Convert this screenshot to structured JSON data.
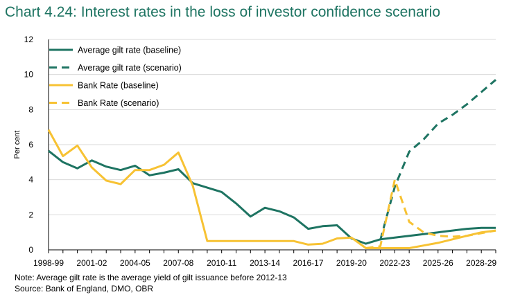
{
  "chart_data": {
    "type": "line",
    "title": "Chart 4.24: Interest rates in the loss of investor confidence scenario",
    "ylabel": "Per cent",
    "xlabel": "",
    "ylim": [
      0,
      12
    ],
    "yticks": [
      0,
      2,
      4,
      6,
      8,
      10,
      12
    ],
    "grid": true,
    "legend_position": "top-left",
    "x_categories": [
      "1998-99",
      "1999-00",
      "2000-01",
      "2001-02",
      "2002-03",
      "2003-04",
      "2004-05",
      "2005-06",
      "2006-07",
      "2007-08",
      "2008-09",
      "2009-10",
      "2010-11",
      "2011-12",
      "2012-13",
      "2013-14",
      "2014-15",
      "2015-16",
      "2016-17",
      "2017-18",
      "2018-19",
      "2019-20",
      "2020-21",
      "2021-22",
      "2022-23",
      "2023-24",
      "2024-25",
      "2025-26",
      "2026-27",
      "2027-28",
      "2028-29",
      "2029-30"
    ],
    "x_tick_labels": [
      "1998-99",
      "2001-02",
      "2004-05",
      "2007-08",
      "2010-11",
      "2013-14",
      "2016-17",
      "2019-20",
      "2022-23",
      "2025-26",
      "2028-29"
    ],
    "series": [
      {
        "name": "Average gilt rate (baseline)",
        "color": "#1e7462",
        "dash": "solid",
        "x": [
          "1998-99",
          "1999-00",
          "2000-01",
          "2001-02",
          "2002-03",
          "2003-04",
          "2004-05",
          "2005-06",
          "2006-07",
          "2007-08",
          "2008-09",
          "2009-10",
          "2010-11",
          "2011-12",
          "2012-13",
          "2013-14",
          "2014-15",
          "2015-16",
          "2016-17",
          "2017-18",
          "2018-19",
          "2019-20",
          "2020-21",
          "2021-22",
          "2022-23",
          "2023-24",
          "2024-25",
          "2025-26",
          "2026-27",
          "2027-28",
          "2028-29",
          "2029-30"
        ],
        "values": [
          5.65,
          5.0,
          4.65,
          5.1,
          4.75,
          4.55,
          4.8,
          4.25,
          4.4,
          4.6,
          3.8,
          3.55,
          3.3,
          2.65,
          1.9,
          2.4,
          2.2,
          1.85,
          1.2,
          1.35,
          1.4,
          0.65,
          0.35,
          0.6,
          0.7,
          0.8,
          0.9,
          1.0,
          1.1,
          1.2,
          1.25,
          1.25
        ]
      },
      {
        "name": "Average gilt rate (scenario)",
        "color": "#1e7462",
        "dash": "dashed",
        "x": [
          "2021-22",
          "2022-23",
          "2023-24",
          "2024-25",
          "2025-26",
          "2026-27",
          "2027-28",
          "2028-29",
          "2029-30"
        ],
        "values": [
          0.55,
          3.6,
          5.6,
          6.3,
          7.2,
          7.7,
          8.3,
          9.0,
          9.7
        ]
      },
      {
        "name": "Bank Rate (baseline)",
        "color": "#f7c233",
        "dash": "solid",
        "x": [
          "1998-99",
          "1999-00",
          "2000-01",
          "2001-02",
          "2002-03",
          "2003-04",
          "2004-05",
          "2005-06",
          "2006-07",
          "2007-08",
          "2008-09",
          "2009-10",
          "2010-11",
          "2011-12",
          "2012-13",
          "2013-14",
          "2014-15",
          "2015-16",
          "2016-17",
          "2017-18",
          "2018-19",
          "2019-20",
          "2020-21",
          "2021-22",
          "2022-23",
          "2023-24",
          "2024-25",
          "2025-26",
          "2026-27",
          "2027-28",
          "2028-29",
          "2029-30"
        ],
        "values": [
          6.85,
          5.35,
          5.95,
          4.7,
          3.95,
          3.75,
          4.55,
          4.55,
          4.85,
          5.55,
          3.65,
          0.5,
          0.5,
          0.5,
          0.5,
          0.5,
          0.5,
          0.5,
          0.3,
          0.35,
          0.65,
          0.7,
          0.1,
          0.1,
          0.1,
          0.1,
          0.25,
          0.4,
          0.6,
          0.8,
          1.0,
          1.1
        ]
      },
      {
        "name": "Bank Rate (scenario)",
        "color": "#f7c233",
        "dash": "dashed",
        "x": [
          "2020-21",
          "2021-22",
          "2022-23",
          "2023-24",
          "2024-25",
          "2025-26",
          "2026-27",
          "2027-28",
          "2028-29",
          "2029-30"
        ],
        "values": [
          0.1,
          0.2,
          4.0,
          1.6,
          1.0,
          0.8,
          0.75,
          0.8,
          0.95,
          1.1
        ]
      }
    ],
    "note": "Note: Average gilt rate is the average yield of gilt issuance before 2012-13",
    "source": "Source: Bank of England, DMO, OBR"
  }
}
